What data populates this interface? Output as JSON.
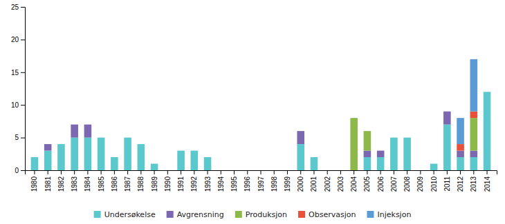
{
  "chart_data": {
    "type": "bar",
    "stacked": true,
    "categories": [
      "1980",
      "1981",
      "1982",
      "1983",
      "1984",
      "1985",
      "1986",
      "1987",
      "1988",
      "1989",
      "1990",
      "1991",
      "1992",
      "1993",
      "1994",
      "1995",
      "1996",
      "1997",
      "1998",
      "1999",
      "2000",
      "2001",
      "2002",
      "2003",
      "2004",
      "2005",
      "2006",
      "2007",
      "2008",
      "2009",
      "2010",
      "2011",
      "2012",
      "2013",
      "2014"
    ],
    "series": [
      {
        "name": "Undersøkelse",
        "color": "#5bc8cd",
        "values": [
          2,
          3,
          4,
          5,
          5,
          5,
          2,
          5,
          4,
          1,
          0,
          3,
          3,
          2,
          0,
          0,
          0,
          0,
          0,
          0,
          4,
          2,
          0,
          0,
          0,
          2,
          2,
          5,
          5,
          0,
          1,
          7,
          2,
          2,
          12
        ]
      },
      {
        "name": "Avgrensning",
        "color": "#7b68b0",
        "values": [
          0,
          1,
          0,
          2,
          2,
          0,
          0,
          0,
          0,
          0,
          0,
          0,
          0,
          0,
          0,
          0,
          0,
          0,
          0,
          0,
          2,
          0,
          0,
          0,
          0,
          1,
          1,
          0,
          0,
          0,
          0,
          2,
          1,
          1,
          0
        ]
      },
      {
        "name": "Produksjon",
        "color": "#8db84a",
        "values": [
          0,
          0,
          0,
          0,
          0,
          0,
          0,
          0,
          0,
          0,
          0,
          0,
          0,
          0,
          0,
          0,
          0,
          0,
          0,
          0,
          0,
          0,
          0,
          0,
          8,
          3,
          0,
          0,
          0,
          0,
          0,
          0,
          0,
          5,
          0
        ]
      },
      {
        "name": "Observasjon",
        "color": "#e8503a",
        "values": [
          0,
          0,
          0,
          0,
          0,
          0,
          0,
          0,
          0,
          0,
          0,
          0,
          0,
          0,
          0,
          0,
          0,
          0,
          0,
          0,
          0,
          0,
          0,
          0,
          0,
          0,
          0,
          0,
          0,
          0,
          0,
          0,
          1,
          1,
          0
        ]
      },
      {
        "name": "Injeksjon",
        "color": "#5b9bd5",
        "values": [
          0,
          0,
          0,
          0,
          0,
          0,
          0,
          0,
          0,
          0,
          0,
          0,
          0,
          0,
          0,
          0,
          0,
          0,
          0,
          0,
          0,
          0,
          0,
          0,
          0,
          0,
          0,
          0,
          0,
          0,
          0,
          0,
          4,
          8,
          0
        ]
      }
    ],
    "ylim": [
      0,
      25
    ],
    "yticks": [
      0,
      5,
      10,
      15,
      20,
      25
    ],
    "grid": false,
    "legend": "bottom"
  }
}
